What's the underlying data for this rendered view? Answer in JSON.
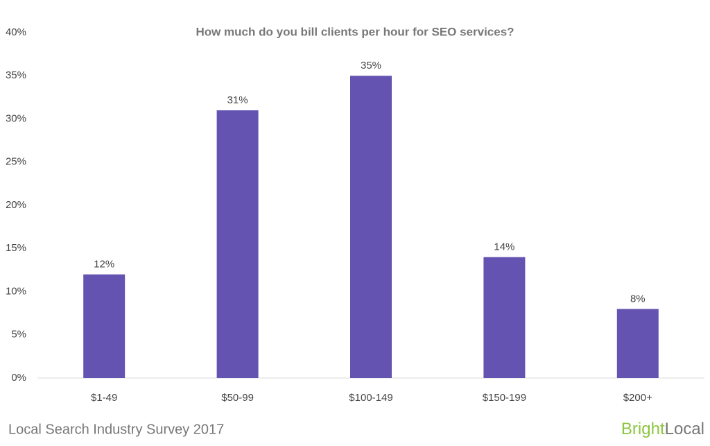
{
  "chart_data": {
    "type": "bar",
    "title": "How much do you bill clients per hour for SEO services?",
    "categories": [
      "$1-49",
      "$50-99",
      "$100-149",
      "$150-199",
      "$200+"
    ],
    "values": [
      12,
      31,
      35,
      14,
      8
    ],
    "value_labels": [
      "12%",
      "31%",
      "35%",
      "14%",
      "8%"
    ],
    "color": "#6453b0",
    "ylim": [
      0,
      40
    ],
    "yticks": [
      {
        "value": 0,
        "label": "0%"
      },
      {
        "value": 5,
        "label": "5%"
      },
      {
        "value": 10,
        "label": "10%"
      },
      {
        "value": 15,
        "label": "15%"
      },
      {
        "value": 20,
        "label": "20%"
      },
      {
        "value": 25,
        "label": "25%"
      },
      {
        "value": 30,
        "label": "30%"
      },
      {
        "value": 35,
        "label": "35%"
      },
      {
        "value": 40,
        "label": "40%"
      }
    ],
    "grid": false,
    "footer": "Local Search Industry Survey 2017",
    "brand": [
      "Bright",
      "Local"
    ]
  }
}
